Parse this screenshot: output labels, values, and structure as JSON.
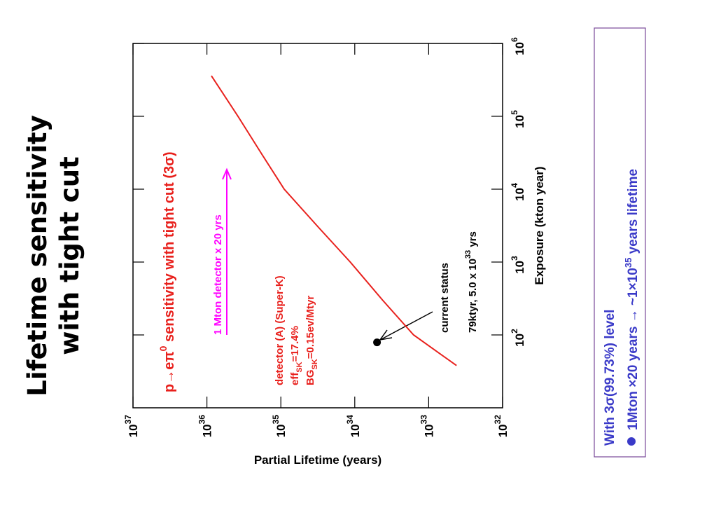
{
  "title": [
    "Lifetime sensitivity",
    "with tight cut"
  ],
  "chart_data": {
    "type": "line",
    "x_label": "Exposure (kton year)",
    "y_label": "Partial Lifetime (years)",
    "x": [
      38,
      100,
      300,
      1000,
      3000,
      10000,
      30000,
      100000,
      360000
    ],
    "series": [
      {
        "color": "#e8201c",
        "values": [
          4.2e+32,
          1.6e+33,
          4.2e+33,
          1.15e+34,
          3.1e+34,
          9e+34,
          1.8e+35,
          3.8e+35,
          8.7e+35
        ]
      }
    ],
    "points": [
      {
        "x": 79,
        "y": 5e+33,
        "color": "#000000"
      }
    ],
    "log_x": true,
    "log_y": true,
    "xlim": [
      10,
      1000000
    ],
    "ylim": [
      1e+32,
      1e+37
    ],
    "xticks": [
      {
        "value": 100,
        "label": "10",
        "exponent": "2"
      },
      {
        "value": 1000,
        "label": "10",
        "exponent": "3"
      },
      {
        "value": 10000,
        "label": "10",
        "exponent": "4"
      },
      {
        "value": 100000,
        "label": "10",
        "exponent": "5"
      },
      {
        "value": 1000000,
        "label": "10",
        "exponent": "6"
      }
    ],
    "yticks": [
      {
        "value": 1e+32,
        "label": "10",
        "exponent": "32"
      },
      {
        "value": 1e+33,
        "label": "10",
        "exponent": "33"
      },
      {
        "value": 1e+34,
        "label": "10",
        "exponent": "34"
      },
      {
        "value": 1e+35,
        "label": "10",
        "exponent": "35"
      },
      {
        "value": 1e+36,
        "label": "10",
        "exponent": "36"
      },
      {
        "value": 1e+37,
        "label": "10",
        "exponent": "37"
      }
    ],
    "annotations": {
      "sensitivity": [
        "p→eπ",
        "0",
        " sensitivity with tight cut (3σ)"
      ],
      "detector": "detector (A) (Super-K)",
      "eff": [
        "eff",
        "SK",
        "=17.4%"
      ],
      "bg": [
        "BG",
        "SK",
        "=0.15ev/Mtyr"
      ],
      "mton": "1 Mton detector x 20 yrs",
      "current_status": "current status",
      "current_value": [
        "79ktyr, 5.0 x 10",
        "33",
        " yrs"
      ]
    }
  },
  "box": {
    "line1": "With 3σ(99.73%) level",
    "line2": [
      "1Mton  ×20 years → ~1×10",
      "35",
      " years lifetime"
    ]
  }
}
